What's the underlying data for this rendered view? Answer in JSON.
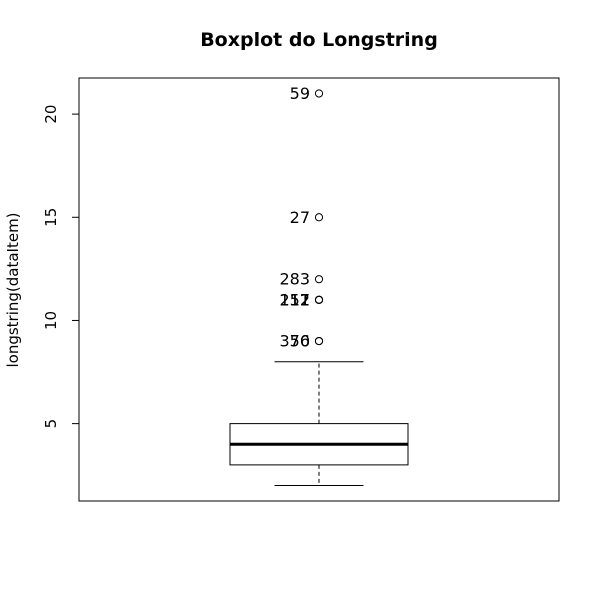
{
  "chart_data": {
    "type": "boxplot",
    "title": "Boxplot do Longstring",
    "xlabel": "",
    "ylabel": "longstring(dataItem)",
    "ylim": [
      1.25,
      21.75
    ],
    "yticks": [
      5,
      10,
      15,
      20
    ],
    "ytick_labels": [
      "5",
      "10",
      "15",
      "20"
    ],
    "box": {
      "whisker_low": 2,
      "q1": 3,
      "median": 4,
      "q3": 5,
      "whisker_high": 8
    },
    "outliers": [
      {
        "value": 9,
        "label": "376"
      },
      {
        "value": 9,
        "label": "50"
      },
      {
        "value": 11,
        "label": "212"
      },
      {
        "value": 11,
        "label": "157"
      },
      {
        "value": 11,
        "label": "11"
      },
      {
        "value": 12,
        "label": "283"
      },
      {
        "value": 15,
        "label": "27"
      },
      {
        "value": 21,
        "label": "59"
      }
    ]
  }
}
